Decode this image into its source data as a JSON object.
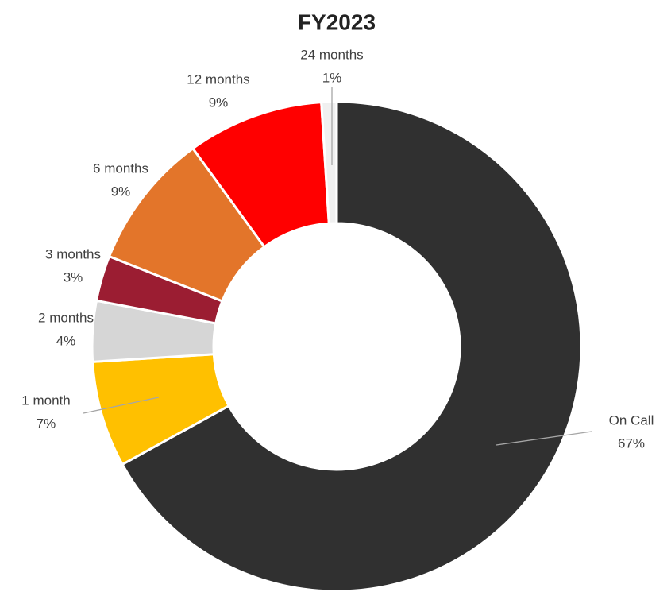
{
  "chart_data": {
    "type": "donut",
    "title": "FY2023",
    "categories": [
      "On Call",
      "1 month",
      "2 months",
      "3 months",
      "6 months",
      "12 months",
      "24 months"
    ],
    "values": [
      67,
      7,
      4,
      3,
      9,
      9,
      1
    ],
    "value_labels": [
      "67%",
      "7%",
      "4%",
      "3%",
      "9%",
      "9%",
      "1%"
    ],
    "colors": [
      "#303030",
      "#FFC000",
      "#D6D6D6",
      "#9B1D32",
      "#E3752A",
      "#FF0000",
      "#F0F0F0"
    ]
  }
}
